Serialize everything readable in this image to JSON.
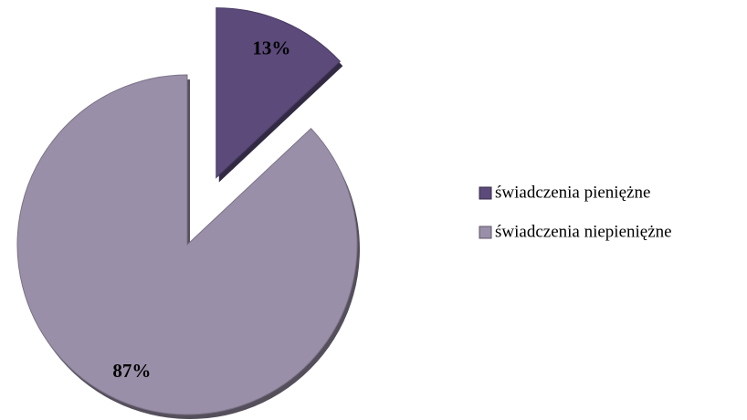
{
  "chart_data": {
    "type": "pie",
    "categories": [
      "świadczenia pieniężne",
      "świadczenia niepieniężne"
    ],
    "values": [
      13,
      87
    ],
    "value_labels": [
      "13%",
      "87%"
    ],
    "colors": [
      "#5b4a7a",
      "#9a8fa8"
    ],
    "legend": "right"
  }
}
